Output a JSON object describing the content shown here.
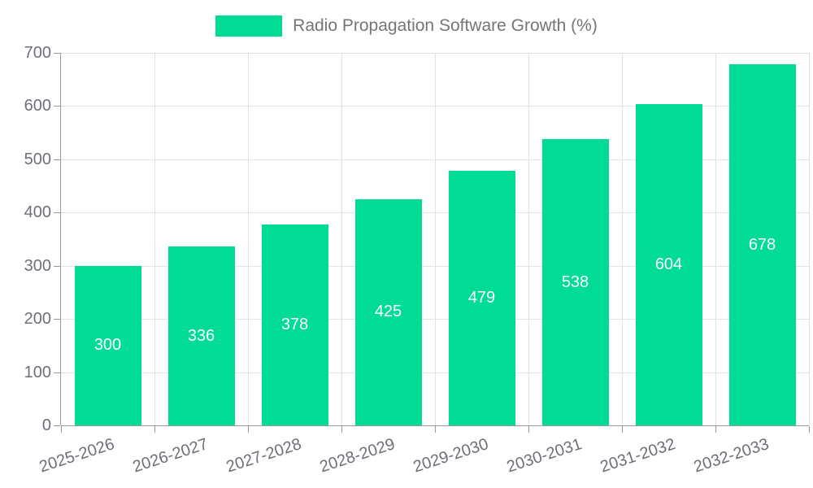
{
  "legend": {
    "label": "Radio Propagation Software Growth (%)"
  },
  "colors": {
    "bar": "#00DC96",
    "grid": "#E3E3E3",
    "axis": "#999999",
    "axis_label": "#6E7079",
    "legend_text": "#757575",
    "value_label": "#FFFFFF",
    "background": "#FFFFFF"
  },
  "chart_data": {
    "type": "bar",
    "title": "Radio Propagation Software Growth (%)",
    "categories": [
      "2025-2026",
      "2026-2027",
      "2027-2028",
      "2028-2029",
      "2029-2030",
      "2030-2031",
      "2031-2032",
      "2032-2033"
    ],
    "values": [
      300,
      336,
      378,
      425,
      479,
      538,
      604,
      678
    ],
    "xlabel": "",
    "ylabel": "",
    "ylim": [
      0,
      700
    ],
    "ytick_interval": 100,
    "ytick_labels": [
      "0",
      "100",
      "200",
      "300",
      "400",
      "500",
      "600",
      "700"
    ],
    "grid": true,
    "legend_position": "top-center",
    "value_labels": "inside-center",
    "x_label_rotation_deg": -18
  }
}
